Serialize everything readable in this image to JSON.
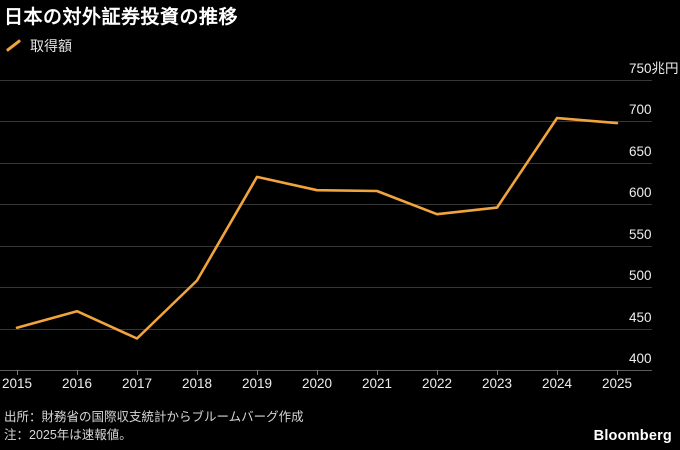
{
  "title": "日本の対外証券投資の推移",
  "legend": {
    "label": "取得額",
    "color": "#F2A43C"
  },
  "chart_data": {
    "type": "line",
    "title": "日本の対外証券投資の推移",
    "x": [
      2015,
      2016,
      2017,
      2018,
      2019,
      2020,
      2021,
      2022,
      2023,
      2024,
      2025
    ],
    "series": [
      {
        "name": "取得額",
        "color": "#F2A43C",
        "values": [
          451,
          471,
          438,
          508,
          633,
          617,
          616,
          588,
          596,
          704,
          698
        ]
      }
    ],
    "unit": "兆円",
    "ylim": [
      400,
      750
    ],
    "yticks": [
      {
        "value": 400,
        "label": "400"
      },
      {
        "value": 450,
        "label": "450"
      },
      {
        "value": 500,
        "label": "500"
      },
      {
        "value": 550,
        "label": "550"
      },
      {
        "value": 600,
        "label": "600"
      },
      {
        "value": 650,
        "label": "650"
      },
      {
        "value": 700,
        "label": "700"
      },
      {
        "value": 750,
        "label": "750兆円"
      }
    ],
    "grid": "horizontal",
    "legend_position": "top-left",
    "background": "#000000"
  },
  "footer": {
    "source": "出所：財務省の国際収支統計からブルームバーグ作成",
    "note": "注：2025年は速報値。",
    "brand": "Bloomberg"
  }
}
